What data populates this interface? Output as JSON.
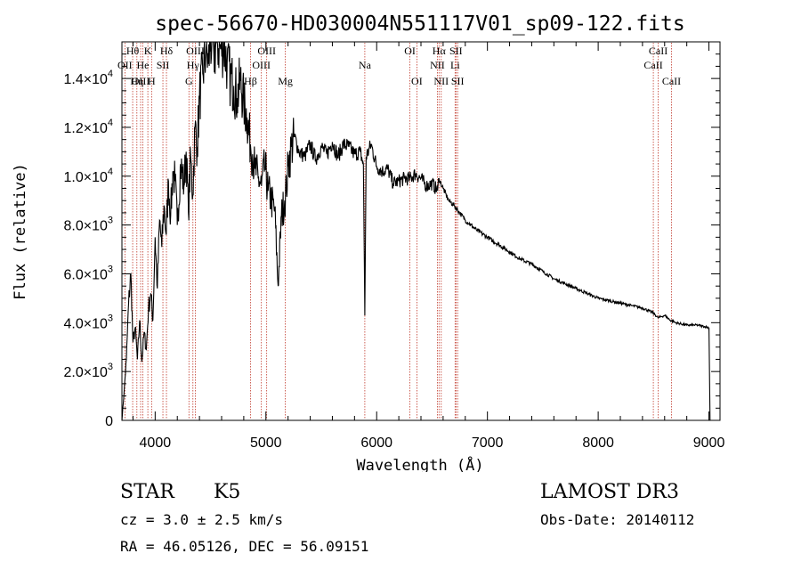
{
  "chart_data": {
    "type": "line",
    "title": "spec-56670-HD030004N551117V01_sp09-122.fits",
    "xlabel": "Wavelength (Å)",
    "ylabel": "Flux (relative)",
    "xlim": [
      3700,
      9100
    ],
    "ylim": [
      0,
      15500
    ],
    "x_ticks": [
      4000,
      5000,
      6000,
      7000,
      8000,
      9000
    ],
    "x_tick_labels": [
      "4000",
      "5000",
      "6000",
      "7000",
      "8000",
      "9000"
    ],
    "y_ticks": [
      {
        "value": 0,
        "mantissa": "0",
        "exponent": ""
      },
      {
        "value": 2000,
        "mantissa": "2.0×10",
        "exponent": "3"
      },
      {
        "value": 4000,
        "mantissa": "4.0×10",
        "exponent": "3"
      },
      {
        "value": 6000,
        "mantissa": "6.0×10",
        "exponent": "3"
      },
      {
        "value": 8000,
        "mantissa": "8.0×10",
        "exponent": "3"
      },
      {
        "value": 10000,
        "mantissa": "1.0×10",
        "exponent": "4"
      },
      {
        "value": 12000,
        "mantissa": "1.2×10",
        "exponent": "4"
      },
      {
        "value": 14000,
        "mantissa": "1.4×10",
        "exponent": "4"
      }
    ],
    "series": [
      {
        "name": "flux",
        "x": [
          3700,
          3720,
          3740,
          3760,
          3780,
          3800,
          3820,
          3840,
          3860,
          3880,
          3900,
          3920,
          3940,
          3960,
          3980,
          4000,
          4020,
          4040,
          4060,
          4080,
          4100,
          4120,
          4140,
          4160,
          4180,
          4200,
          4230,
          4260,
          4280,
          4300,
          4320,
          4340,
          4360,
          4380,
          4400,
          4430,
          4460,
          4480,
          4500,
          4530,
          4560,
          4590,
          4620,
          4650,
          4680,
          4710,
          4740,
          4770,
          4800,
          4830,
          4860,
          4880,
          4900,
          4930,
          4960,
          4990,
          5020,
          5050,
          5080,
          5110,
          5140,
          5170,
          5185,
          5200,
          5230,
          5260,
          5300,
          5350,
          5400,
          5450,
          5500,
          5550,
          5600,
          5650,
          5700,
          5750,
          5800,
          5850,
          5880,
          5893,
          5905,
          5950,
          6000,
          6050,
          6100,
          6150,
          6200,
          6250,
          6300,
          6350,
          6400,
          6450,
          6500,
          6550,
          6563,
          6600,
          6650,
          6700,
          6750,
          6800,
          6900,
          7000,
          7100,
          7200,
          7300,
          7400,
          7500,
          7600,
          7700,
          7800,
          7900,
          8000,
          8100,
          8200,
          8300,
          8400,
          8500,
          8540,
          8600,
          8650,
          8700,
          8800,
          8900,
          9000,
          9010
        ],
        "y": [
          0,
          1200,
          2500,
          4800,
          6000,
          3200,
          3800,
          2500,
          4100,
          2400,
          3600,
          2900,
          4600,
          5200,
          4100,
          7500,
          5400,
          8200,
          7100,
          8800,
          7600,
          9800,
          8400,
          10200,
          9800,
          8000,
          10500,
          9600,
          11000,
          8500,
          10800,
          9200,
          12000,
          11200,
          13200,
          14200,
          15200,
          14600,
          15500,
          15000,
          15500,
          15200,
          15400,
          14600,
          14000,
          13700,
          13200,
          13900,
          13000,
          12400,
          11300,
          10900,
          10300,
          9900,
          9600,
          10400,
          9400,
          9000,
          8600,
          5500,
          8400,
          9000,
          9500,
          10400,
          11200,
          11600,
          11000,
          10800,
          11300,
          10700,
          11200,
          10900,
          11400,
          10800,
          11300,
          11200,
          10900,
          11000,
          10500,
          4300,
          10800,
          11300,
          10400,
          10200,
          10300,
          9700,
          9800,
          9900,
          9900,
          10100,
          9900,
          9600,
          9700,
          9400,
          9900,
          9500,
          9000,
          8800,
          8500,
          8200,
          7800,
          7500,
          7200,
          6900,
          6600,
          6400,
          6100,
          5800,
          5600,
          5400,
          5200,
          5000,
          4900,
          4800,
          4700,
          4600,
          4400,
          4200,
          4300,
          4100,
          4000,
          3900,
          3900,
          3800,
          0
        ]
      }
    ],
    "lines": [
      {
        "label": "Hθ",
        "x": 3797,
        "row": 0
      },
      {
        "label": "OII",
        "x": 3727,
        "row": 1
      },
      {
        "label": "OIII",
        "x": 3869,
        "row": 2
      },
      {
        "label": "Hη",
        "x": 3835,
        "row": 2
      },
      {
        "label": "He",
        "x": 3889,
        "row": 1
      },
      {
        "label": "K",
        "x": 3934,
        "row": 0
      },
      {
        "label": "H",
        "x": 3968,
        "row": 2
      },
      {
        "label": "SII",
        "x": 4070,
        "row": 1
      },
      {
        "label": "Hδ",
        "x": 4102,
        "row": 0
      },
      {
        "label": "G",
        "x": 4305,
        "row": 2
      },
      {
        "label": "OIII",
        "x": 4363,
        "row": 0
      },
      {
        "label": "Hγ",
        "x": 4341,
        "row": 1
      },
      {
        "label": "Hβ",
        "x": 4861,
        "row": 2
      },
      {
        "label": "OIII",
        "x": 4959,
        "row": 1
      },
      {
        "label": "OIII",
        "x": 5007,
        "row": 0
      },
      {
        "label": "Mg",
        "x": 5175,
        "row": 2
      },
      {
        "label": "Na",
        "x": 5893,
        "row": 1
      },
      {
        "label": "OI",
        "x": 6300,
        "row": 0
      },
      {
        "label": "OI",
        "x": 6363,
        "row": 2
      },
      {
        "label": "NII",
        "x": 6548,
        "row": 1
      },
      {
        "label": "Hα",
        "x": 6563,
        "row": 0
      },
      {
        "label": "NII",
        "x": 6583,
        "row": 2
      },
      {
        "label": "Li",
        "x": 6708,
        "row": 1
      },
      {
        "label": "SII",
        "x": 6716,
        "row": 0
      },
      {
        "label": "SII",
        "x": 6731,
        "row": 2
      },
      {
        "label": "CaII",
        "x": 8498,
        "row": 1
      },
      {
        "label": "CaII",
        "x": 8542,
        "row": 0
      },
      {
        "label": "CaII",
        "x": 8662,
        "row": 2
      }
    ]
  },
  "info": {
    "class_label": "STAR",
    "subclass": "K5",
    "survey": "LAMOST DR3",
    "redshift": "cz = 3.0 ± 2.5 km/s",
    "obs_date": "Obs-Date: 20140112",
    "coords": "RA =  46.05126, DEC =  56.09151"
  }
}
